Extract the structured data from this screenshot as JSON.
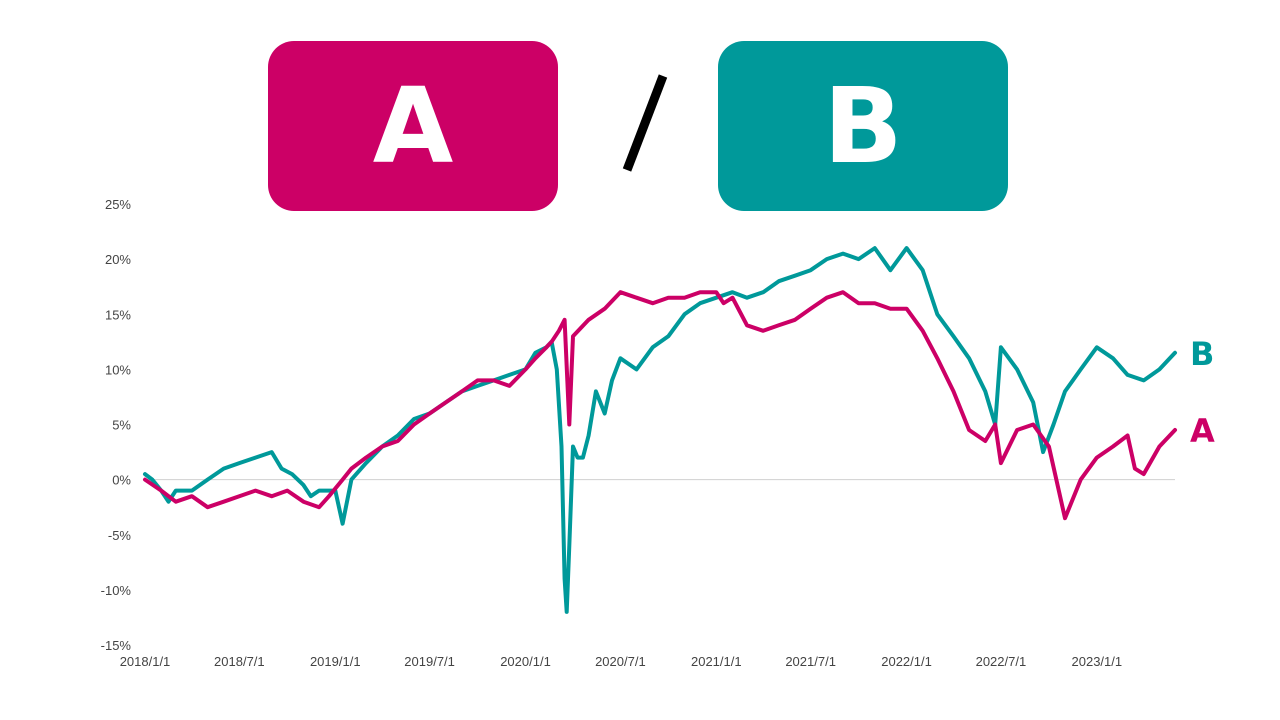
{
  "header": {
    "label_a": "A",
    "label_b": "B",
    "separator": "/"
  },
  "colors": {
    "a": "#cc0066",
    "b": "#00999a",
    "separator": "#000000",
    "zero_line": "#d0d0d0"
  },
  "chart_data": {
    "type": "line",
    "title": "",
    "xlabel": "",
    "ylabel": "",
    "ylim": [
      -15,
      25
    ],
    "yticks": [
      -15,
      -10,
      -5,
      0,
      5,
      10,
      15,
      20,
      25
    ],
    "ytick_labels": [
      "-15%",
      "-10%",
      "-5%",
      "0%",
      "5%",
      "10%",
      "15%",
      "20%",
      "25%"
    ],
    "xlim": [
      "2018-01-01",
      "2023-05-31"
    ],
    "xticks": [
      "2018-01-01",
      "2018-07-01",
      "2019-01-01",
      "2019-07-01",
      "2020-01-01",
      "2020-07-01",
      "2021-01-01",
      "2021-07-01",
      "2022-01-01",
      "2022-07-01",
      "2023-01-01"
    ],
    "xtick_labels": [
      "2018/1/1",
      "2018/7/1",
      "2019/1/1",
      "2019/7/1",
      "2020/1/1",
      "2020/7/1",
      "2021/1/1",
      "2021/7/1",
      "2022/1/1",
      "2022/7/1",
      "2023/1/1"
    ],
    "zero_line": true,
    "grid": false,
    "legend": "none",
    "series": [
      {
        "name": "A",
        "end_label": "A",
        "x": [
          "2018-01-01",
          "2018-02-01",
          "2018-03-01",
          "2018-04-01",
          "2018-05-01",
          "2018-06-01",
          "2018-07-01",
          "2018-08-01",
          "2018-09-01",
          "2018-10-01",
          "2018-11-01",
          "2018-12-01",
          "2018-12-20",
          "2019-01-15",
          "2019-02-01",
          "2019-03-01",
          "2019-04-01",
          "2019-05-01",
          "2019-06-01",
          "2019-07-01",
          "2019-08-01",
          "2019-09-01",
          "2019-10-01",
          "2019-11-01",
          "2019-12-01",
          "2020-01-01",
          "2020-01-20",
          "2020-02-10",
          "2020-02-20",
          "2020-03-05",
          "2020-03-16",
          "2020-03-25",
          "2020-04-01",
          "2020-05-01",
          "2020-06-01",
          "2020-07-01",
          "2020-08-01",
          "2020-09-01",
          "2020-10-01",
          "2020-11-01",
          "2020-12-01",
          "2021-01-01",
          "2021-01-15",
          "2021-02-01",
          "2021-03-01",
          "2021-04-01",
          "2021-05-01",
          "2021-06-01",
          "2021-07-01",
          "2021-08-01",
          "2021-09-01",
          "2021-10-01",
          "2021-11-01",
          "2021-12-01",
          "2022-01-01",
          "2022-02-01",
          "2022-03-01",
          "2022-04-01",
          "2022-05-01",
          "2022-06-01",
          "2022-06-20",
          "2022-07-01",
          "2022-08-01",
          "2022-09-01",
          "2022-10-01",
          "2022-10-20",
          "2022-11-01",
          "2022-12-01",
          "2023-01-01",
          "2023-02-01",
          "2023-03-01",
          "2023-03-15",
          "2023-04-01",
          "2023-05-01",
          "2023-05-31"
        ],
        "values": [
          0,
          -1,
          -2,
          -1.5,
          -2.5,
          -2,
          -1.5,
          -1,
          -1.5,
          -1,
          -2,
          -2.5,
          -1.5,
          0,
          1,
          2,
          3,
          3.5,
          5,
          6,
          7,
          8,
          9,
          9,
          8.5,
          10,
          11,
          12,
          12.5,
          13.5,
          14.5,
          5,
          13,
          14.5,
          15.5,
          17,
          16.5,
          16,
          16.5,
          16.5,
          17,
          17,
          16,
          16.5,
          14,
          13.5,
          14,
          14.5,
          15.5,
          16.5,
          17,
          16,
          16,
          15.5,
          15.5,
          13.5,
          11,
          8,
          4.5,
          3.5,
          5,
          1.5,
          4.5,
          5,
          3,
          -1,
          -3.5,
          0,
          2,
          3,
          4,
          1,
          0.5,
          3,
          4.5
        ]
      },
      {
        "name": "B",
        "end_label": "B",
        "x": [
          "2018-01-01",
          "2018-01-15",
          "2018-02-01",
          "2018-02-15",
          "2018-03-01",
          "2018-04-01",
          "2018-05-01",
          "2018-06-01",
          "2018-07-01",
          "2018-08-01",
          "2018-09-01",
          "2018-09-20",
          "2018-10-10",
          "2018-11-01",
          "2018-11-15",
          "2018-12-01",
          "2018-12-20",
          "2019-01-01",
          "2019-01-15",
          "2019-02-01",
          "2019-03-01",
          "2019-04-01",
          "2019-05-01",
          "2019-06-01",
          "2019-07-01",
          "2019-08-01",
          "2019-09-01",
          "2019-10-01",
          "2019-11-01",
          "2019-12-01",
          "2020-01-01",
          "2020-01-20",
          "2020-02-10",
          "2020-02-20",
          "2020-03-01",
          "2020-03-10",
          "2020-03-16",
          "2020-03-20",
          "2020-03-25",
          "2020-04-01",
          "2020-04-10",
          "2020-04-20",
          "2020-05-01",
          "2020-05-15",
          "2020-06-01",
          "2020-06-15",
          "2020-07-01",
          "2020-08-01",
          "2020-09-01",
          "2020-10-01",
          "2020-11-01",
          "2020-12-01",
          "2021-01-01",
          "2021-02-01",
          "2021-03-01",
          "2021-04-01",
          "2021-05-01",
          "2021-06-01",
          "2021-07-01",
          "2021-08-01",
          "2021-09-01",
          "2021-10-01",
          "2021-11-01",
          "2021-12-01",
          "2022-01-01",
          "2022-02-01",
          "2022-03-01",
          "2022-04-01",
          "2022-05-01",
          "2022-06-01",
          "2022-06-20",
          "2022-07-01",
          "2022-08-01",
          "2022-09-01",
          "2022-09-20",
          "2022-10-10",
          "2022-11-01",
          "2022-12-01",
          "2023-01-01",
          "2023-02-01",
          "2023-03-01",
          "2023-04-01",
          "2023-05-01",
          "2023-05-31"
        ],
        "values": [
          0.5,
          0,
          -1,
          -2,
          -1,
          -1,
          0,
          1,
          1.5,
          2,
          2.5,
          1,
          0.5,
          -0.5,
          -1.5,
          -1,
          -1,
          -1,
          -4,
          0,
          1.5,
          3,
          4,
          5.5,
          6,
          7,
          8,
          8.5,
          9,
          9.5,
          10,
          11.5,
          12,
          12.5,
          10,
          3,
          -9,
          -12,
          -6,
          3,
          2,
          2,
          4,
          8,
          6,
          9,
          11,
          10,
          12,
          13,
          15,
          16,
          16.5,
          17,
          16.5,
          17,
          18,
          18.5,
          19,
          20,
          20.5,
          20,
          21,
          19,
          21,
          19,
          15,
          13,
          11,
          8,
          5,
          12,
          10,
          7,
          2.5,
          5,
          8,
          10,
          12,
          11,
          9.5,
          9,
          10,
          11.5
        ]
      }
    ]
  }
}
